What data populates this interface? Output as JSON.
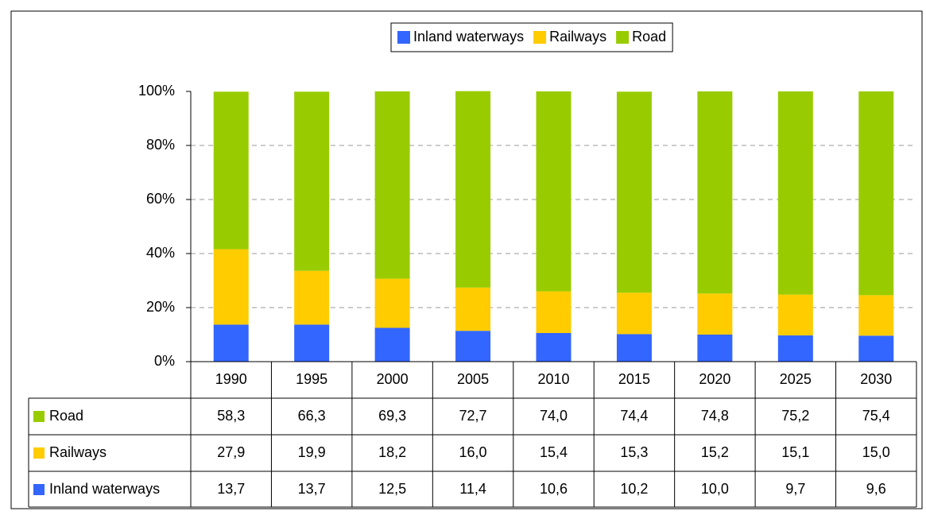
{
  "chart_data": {
    "type": "bar",
    "stacked": true,
    "categories": [
      "1990",
      "1995",
      "2000",
      "2005",
      "2010",
      "2015",
      "2020",
      "2025",
      "2030"
    ],
    "series": [
      {
        "name": "Inland waterways",
        "color": "#3366ff",
        "values": [
          13.7,
          13.7,
          12.5,
          11.4,
          10.6,
          10.2,
          10.0,
          9.7,
          9.6
        ],
        "value_labels": [
          "13,7",
          "13,7",
          "12,5",
          "11,4",
          "10,6",
          "10,2",
          "10,0",
          "9,7",
          "9,6"
        ]
      },
      {
        "name": "Railways",
        "color": "#ffcc00",
        "values": [
          27.9,
          19.9,
          18.2,
          16.0,
          15.4,
          15.3,
          15.2,
          15.1,
          15.0
        ],
        "value_labels": [
          "27,9",
          "19,9",
          "18,2",
          "16,0",
          "15,4",
          "15,3",
          "15,2",
          "15,1",
          "15,0"
        ]
      },
      {
        "name": "Road",
        "color": "#99cc00",
        "values": [
          58.3,
          66.3,
          69.3,
          72.7,
          74.0,
          74.4,
          74.8,
          75.2,
          75.4
        ],
        "value_labels": [
          "58,3",
          "66,3",
          "69,3",
          "72,7",
          "74,0",
          "74,4",
          "74,8",
          "75,2",
          "75,4"
        ]
      }
    ],
    "ylim": [
      0,
      100
    ],
    "yticks": [
      {
        "value": 0,
        "label": "0%"
      },
      {
        "value": 20,
        "label": "20%"
      },
      {
        "value": 40,
        "label": "40%"
      },
      {
        "value": 60,
        "label": "60%"
      },
      {
        "value": 80,
        "label": "80%"
      },
      {
        "value": 100,
        "label": "100%"
      }
    ],
    "grid": true,
    "legend": "top"
  }
}
